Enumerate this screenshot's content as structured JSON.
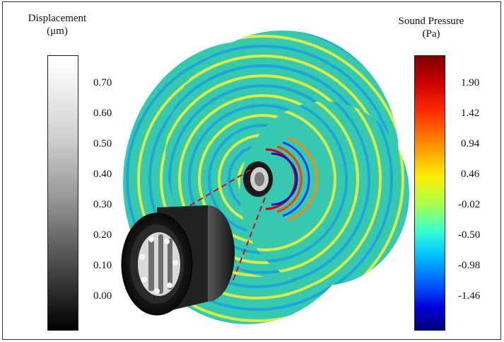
{
  "left_colorbar": {
    "title": "Displacement",
    "unit": "(μm)",
    "ticks": [
      "0.70",
      "0.60",
      "0.50",
      "0.40",
      "0.30",
      "0.20",
      "0.10",
      "0.00"
    ],
    "gradient_colors": [
      "#ffffff",
      "#000000"
    ]
  },
  "right_colorbar": {
    "title": "Sound Pressure",
    "unit": "(Pa)",
    "ticks": [
      "1.90",
      "1.42",
      "0.94",
      "0.46",
      "-0.02",
      "-0.50",
      "-0.98",
      "-1.46"
    ],
    "gradient_colors": [
      "#7f0000",
      "#ff2a00",
      "#ffee00",
      "#38ffd0",
      "#0066ff",
      "#00007a"
    ]
  },
  "colors": {
    "wave_background": "#37c9b0",
    "wave_band_yellow": "#e8ef3c",
    "wave_band_blue": "#1aa3e0",
    "zoom_line": "#cc1111"
  }
}
